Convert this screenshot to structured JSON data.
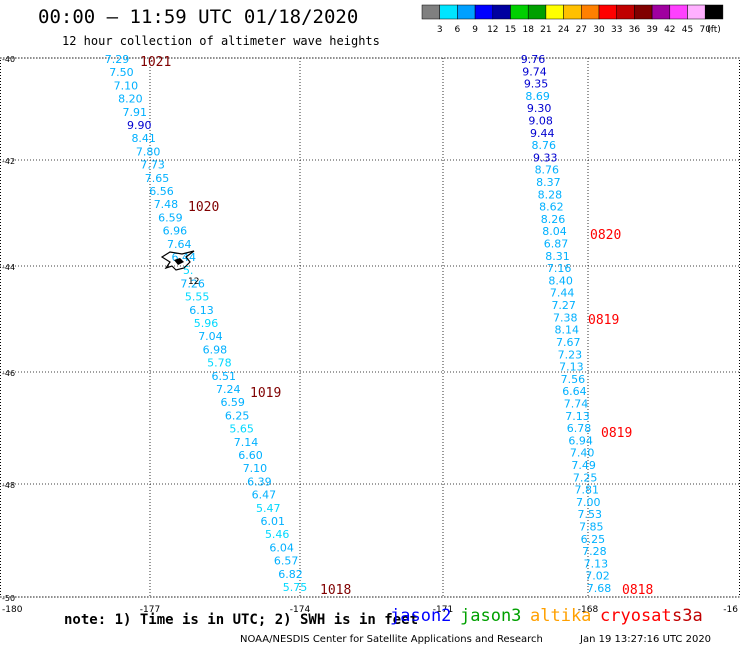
{
  "title": "00:00 – 11:59 UTC 01/18/2020",
  "subtitle": "12 hour collection of altimeter wave heights",
  "unit_label": "(ft)",
  "legend": {
    "colors": [
      "#808080",
      "#00e5ff",
      "#00a0ff",
      "#0000ff",
      "#0000a0",
      "#00d000",
      "#00a000",
      "#ffff00",
      "#ffc000",
      "#ff8000",
      "#ff0000",
      "#c00000",
      "#800000",
      "#a000a0",
      "#ff40ff",
      "#ffb0ff",
      "#000000"
    ],
    "ticks": [
      "3",
      "6",
      "9",
      "12",
      "15",
      "18",
      "21",
      "24",
      "27",
      "30",
      "33",
      "36",
      "39",
      "42",
      "45",
      "70"
    ]
  },
  "axes": {
    "lat_labels": [
      "-40",
      "-42",
      "-44",
      "-46",
      "-48",
      "-50"
    ],
    "lon_labels": [
      "-180",
      "-177",
      "-174",
      "-171",
      "-168",
      "-16"
    ]
  },
  "left_track": {
    "times": [
      {
        "label": "1021",
        "color": "#800000"
      },
      {
        "label": "1020",
        "color": "#800000"
      },
      {
        "label": "1019",
        "color": "#800000"
      },
      {
        "label": "1018",
        "color": "#800000"
      }
    ],
    "values": [
      {
        "v": "7.29",
        "c": "#00b0ff"
      },
      {
        "v": "7.50",
        "c": "#00b0ff"
      },
      {
        "v": "7.10",
        "c": "#00b0ff"
      },
      {
        "v": "8.20",
        "c": "#00b0ff"
      },
      {
        "v": "7.91",
        "c": "#00b0ff"
      },
      {
        "v": "9.90",
        "c": "#0000d0"
      },
      {
        "v": "8.41",
        "c": "#00b0ff"
      },
      {
        "v": "7.80",
        "c": "#00b0ff"
      },
      {
        "v": "7.73",
        "c": "#00b0ff"
      },
      {
        "v": "7.65",
        "c": "#00b0ff"
      },
      {
        "v": "6.56",
        "c": "#00b0ff"
      },
      {
        "v": "7.48",
        "c": "#00b0ff"
      },
      {
        "v": "6.59",
        "c": "#00b0ff"
      },
      {
        "v": "6.96",
        "c": "#00b0ff"
      },
      {
        "v": "7.64",
        "c": "#00b0ff"
      },
      {
        "v": "6.44",
        "c": "#00b0ff"
      },
      {
        "v": "5.",
        "c": "#00d8ff"
      },
      {
        "v": "7.26",
        "c": "#00b0ff"
      },
      {
        "v": "5.55",
        "c": "#00d8ff"
      },
      {
        "v": "6.13",
        "c": "#00b0ff"
      },
      {
        "v": "5.96",
        "c": "#00d8ff"
      },
      {
        "v": "7.04",
        "c": "#00b0ff"
      },
      {
        "v": "6.98",
        "c": "#00b0ff"
      },
      {
        "v": "5.78",
        "c": "#00d8ff"
      },
      {
        "v": "6.51",
        "c": "#00b0ff"
      },
      {
        "v": "7.24",
        "c": "#00b0ff"
      },
      {
        "v": "6.59",
        "c": "#00b0ff"
      },
      {
        "v": "6.25",
        "c": "#00b0ff"
      },
      {
        "v": "5.65",
        "c": "#00d8ff"
      },
      {
        "v": "7.14",
        "c": "#00b0ff"
      },
      {
        "v": "6.60",
        "c": "#00b0ff"
      },
      {
        "v": "7.10",
        "c": "#00b0ff"
      },
      {
        "v": "6.39",
        "c": "#00b0ff"
      },
      {
        "v": "6.47",
        "c": "#00b0ff"
      },
      {
        "v": "5.47",
        "c": "#00d8ff"
      },
      {
        "v": "6.01",
        "c": "#00b0ff"
      },
      {
        "v": "5.46",
        "c": "#00d8ff"
      },
      {
        "v": "6.04",
        "c": "#00b0ff"
      },
      {
        "v": "6.57",
        "c": "#00b0ff"
      },
      {
        "v": "6.82",
        "c": "#00b0ff"
      },
      {
        "v": "5.75",
        "c": "#00d8ff"
      }
    ]
  },
  "right_track": {
    "times": [
      {
        "label": "0820",
        "color": "#ff0000"
      },
      {
        "label": "0819",
        "color": "#ff0000"
      },
      {
        "label": "0819",
        "color": "#ff0000"
      },
      {
        "label": "0818",
        "color": "#ff0000"
      }
    ],
    "values": [
      {
        "v": "9.76",
        "c": "#0000d0"
      },
      {
        "v": "9.74",
        "c": "#0000d0"
      },
      {
        "v": "9.35",
        "c": "#0000d0"
      },
      {
        "v": "8.69",
        "c": "#00b0ff"
      },
      {
        "v": "9.30",
        "c": "#0000d0"
      },
      {
        "v": "9.08",
        "c": "#0000d0"
      },
      {
        "v": "9.44",
        "c": "#0000d0"
      },
      {
        "v": "8.76",
        "c": "#00b0ff"
      },
      {
        "v": "9.33",
        "c": "#0000d0"
      },
      {
        "v": "8.76",
        "c": "#00b0ff"
      },
      {
        "v": "8.37",
        "c": "#00b0ff"
      },
      {
        "v": "8.28",
        "c": "#00b0ff"
      },
      {
        "v": "8.62",
        "c": "#00b0ff"
      },
      {
        "v": "8.26",
        "c": "#00b0ff"
      },
      {
        "v": "8.04",
        "c": "#00b0ff"
      },
      {
        "v": "6.87",
        "c": "#00b0ff"
      },
      {
        "v": "8.31",
        "c": "#00b0ff"
      },
      {
        "v": "7.16",
        "c": "#00b0ff"
      },
      {
        "v": "8.40",
        "c": "#00b0ff"
      },
      {
        "v": "7.44",
        "c": "#00b0ff"
      },
      {
        "v": "7.27",
        "c": "#00b0ff"
      },
      {
        "v": "7.38",
        "c": "#00b0ff"
      },
      {
        "v": "8.14",
        "c": "#00b0ff"
      },
      {
        "v": "7.67",
        "c": "#00b0ff"
      },
      {
        "v": "7.23",
        "c": "#00b0ff"
      },
      {
        "v": "7.13",
        "c": "#00b0ff"
      },
      {
        "v": "7.56",
        "c": "#00b0ff"
      },
      {
        "v": "6.64",
        "c": "#00b0ff"
      },
      {
        "v": "7.74",
        "c": "#00b0ff"
      },
      {
        "v": "7.13",
        "c": "#00b0ff"
      },
      {
        "v": "6.78",
        "c": "#00b0ff"
      },
      {
        "v": "6.94",
        "c": "#00b0ff"
      },
      {
        "v": "7.40",
        "c": "#00b0ff"
      },
      {
        "v": "7.49",
        "c": "#00b0ff"
      },
      {
        "v": "7.25",
        "c": "#00b0ff"
      },
      {
        "v": "7.81",
        "c": "#00b0ff"
      },
      {
        "v": "7.00",
        "c": "#00b0ff"
      },
      {
        "v": "7.53",
        "c": "#00b0ff"
      },
      {
        "v": "7.85",
        "c": "#00b0ff"
      },
      {
        "v": "6.25",
        "c": "#00b0ff"
      },
      {
        "v": "7.28",
        "c": "#00b0ff"
      },
      {
        "v": "7.13",
        "c": "#00b0ff"
      },
      {
        "v": "7.02",
        "c": "#00b0ff"
      },
      {
        "v": "7.68",
        "c": "#00b0ff"
      }
    ]
  },
  "island_label": "12",
  "note": "note: 1) Time is in UTC; 2) SWH is in feet",
  "satellites": [
    {
      "name": "jason2",
      "color": "#0000ff"
    },
    {
      "name": "jason3",
      "color": "#00a000"
    },
    {
      "name": "altika",
      "color": "#ffa000"
    },
    {
      "name": "cryosat",
      "color": "#ff0000"
    },
    {
      "name": "s3a",
      "color": "#c00000"
    }
  ],
  "credit": "NOAA/NESDIS Center for Satellite Applications and Research",
  "timestamp": "Jan 19 13:27:16 UTC 2020"
}
